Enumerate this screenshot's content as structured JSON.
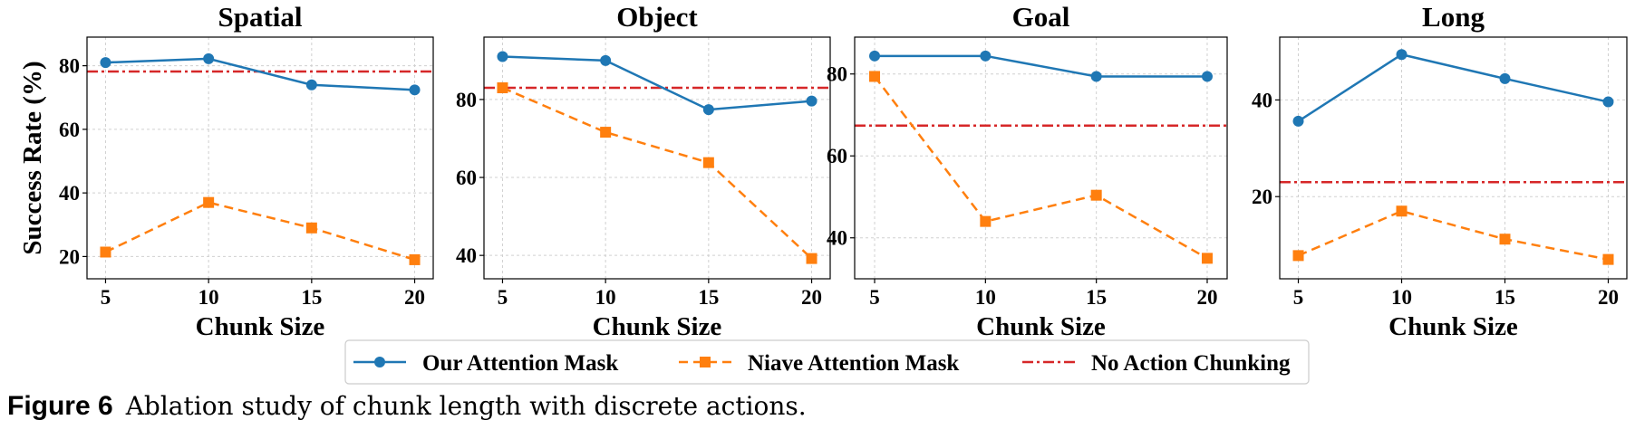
{
  "chart_data": [
    {
      "type": "line",
      "title": "Spatial",
      "xlabel": "Chunk Size",
      "ylabel": "Success Rate (%)",
      "x": [
        5,
        10,
        15,
        20
      ],
      "xticks": [
        "5",
        "10",
        "15",
        "20"
      ],
      "ylim": [
        13,
        89
      ],
      "yticks": [
        20,
        40,
        60,
        80
      ],
      "series": [
        {
          "name": "Our Attention Mask",
          "values": [
            81,
            82.2,
            74,
            72.4
          ]
        },
        {
          "name": "Niave Attention Mask",
          "values": [
            21.4,
            37,
            29,
            19
          ]
        }
      ],
      "baseline": 78.2
    },
    {
      "type": "line",
      "title": "Object",
      "xlabel": "Chunk Size",
      "ylabel": "",
      "x": [
        5,
        10,
        15,
        20
      ],
      "xticks": [
        "5",
        "10",
        "15",
        "20"
      ],
      "ylim": [
        34,
        96
      ],
      "yticks": [
        40,
        60,
        80
      ],
      "series": [
        {
          "name": "Our Attention Mask",
          "values": [
            91,
            90,
            77.4,
            79.6
          ]
        },
        {
          "name": "Niave Attention Mask",
          "values": [
            83,
            71.6,
            63.8,
            39.2
          ]
        }
      ],
      "baseline": 83
    },
    {
      "type": "line",
      "title": "Goal",
      "xlabel": "Chunk Size",
      "ylabel": "",
      "x": [
        5,
        10,
        15,
        20
      ],
      "xticks": [
        "5",
        "10",
        "15",
        "20"
      ],
      "ylim": [
        30,
        89
      ],
      "yticks": [
        40,
        60,
        80
      ],
      "series": [
        {
          "name": "Our Attention Mask",
          "values": [
            84.4,
            84.4,
            79.4,
            79.4
          ]
        },
        {
          "name": "Niave Attention Mask",
          "values": [
            79.4,
            44,
            50.4,
            35
          ]
        }
      ],
      "baseline": 67.4
    },
    {
      "type": "line",
      "title": "Long",
      "xlabel": "Chunk Size",
      "ylabel": "",
      "x": [
        5,
        10,
        15,
        20
      ],
      "xticks": [
        "5",
        "10",
        "15",
        "20"
      ],
      "ylim": [
        3,
        53
      ],
      "yticks": [
        20,
        40
      ],
      "series": [
        {
          "name": "Our Attention Mask",
          "values": [
            35.6,
            49.4,
            44.4,
            39.6
          ]
        },
        {
          "name": "Niave Attention Mask",
          "values": [
            7.8,
            17,
            11.2,
            7
          ]
        }
      ],
      "baseline": 23
    }
  ],
  "legend": {
    "items": [
      {
        "label": "Our Attention Mask",
        "color": "#1f77b4",
        "style": "solid",
        "marker": "circle"
      },
      {
        "label": "Niave Attention Mask",
        "color": "#ff7f0e",
        "style": "dashed",
        "marker": "square"
      },
      {
        "label": "No Action Chunking",
        "color": "#d62728",
        "style": "dashdot",
        "marker": "none"
      }
    ]
  },
  "caption": {
    "label": "Figure 6",
    "text": "Ablation study of chunk length with discrete actions."
  },
  "colors": {
    "ours": "#1f77b4",
    "naive": "#ff7f0e",
    "baseline": "#d62728",
    "grid": "#d0d0d0"
  }
}
